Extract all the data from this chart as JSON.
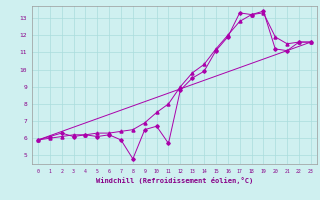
{
  "xlabel": "Windchill (Refroidissement éolien,°C)",
  "xlim": [
    -0.5,
    23.5
  ],
  "ylim": [
    4.5,
    13.7
  ],
  "xticks": [
    0,
    1,
    2,
    3,
    4,
    5,
    6,
    7,
    8,
    9,
    10,
    11,
    12,
    13,
    14,
    15,
    16,
    17,
    18,
    19,
    20,
    21,
    22,
    23
  ],
  "yticks": [
    5,
    6,
    7,
    8,
    9,
    10,
    11,
    12,
    13
  ],
  "bg_color": "#cff0f0",
  "grid_color": "#aadddd",
  "line_color": "#aa00aa",
  "series1_x": [
    0,
    1,
    2,
    3,
    4,
    5,
    6,
    7,
    8,
    9,
    10,
    11,
    12,
    13,
    14,
    15,
    16,
    17,
    18,
    19,
    20,
    21,
    22,
    23
  ],
  "series1_y": [
    5.9,
    6.1,
    6.3,
    6.1,
    6.2,
    6.1,
    6.2,
    5.9,
    4.8,
    6.5,
    6.7,
    5.7,
    8.8,
    9.5,
    9.9,
    11.1,
    11.9,
    13.3,
    13.2,
    13.4,
    11.2,
    11.1,
    11.6,
    11.6
  ],
  "series2_x": [
    0,
    23
  ],
  "series2_y": [
    5.9,
    11.6
  ],
  "series3_x": [
    0,
    1,
    2,
    3,
    4,
    5,
    6,
    7,
    8,
    9,
    10,
    11,
    12,
    13,
    14,
    15,
    16,
    17,
    18,
    19,
    20,
    21,
    22,
    23
  ],
  "series3_y": [
    5.9,
    6.0,
    6.1,
    6.2,
    6.2,
    6.3,
    6.3,
    6.4,
    6.5,
    6.9,
    7.5,
    8.0,
    9.0,
    9.8,
    10.3,
    11.2,
    12.0,
    12.8,
    13.2,
    13.3,
    11.9,
    11.5,
    11.6,
    11.6
  ]
}
